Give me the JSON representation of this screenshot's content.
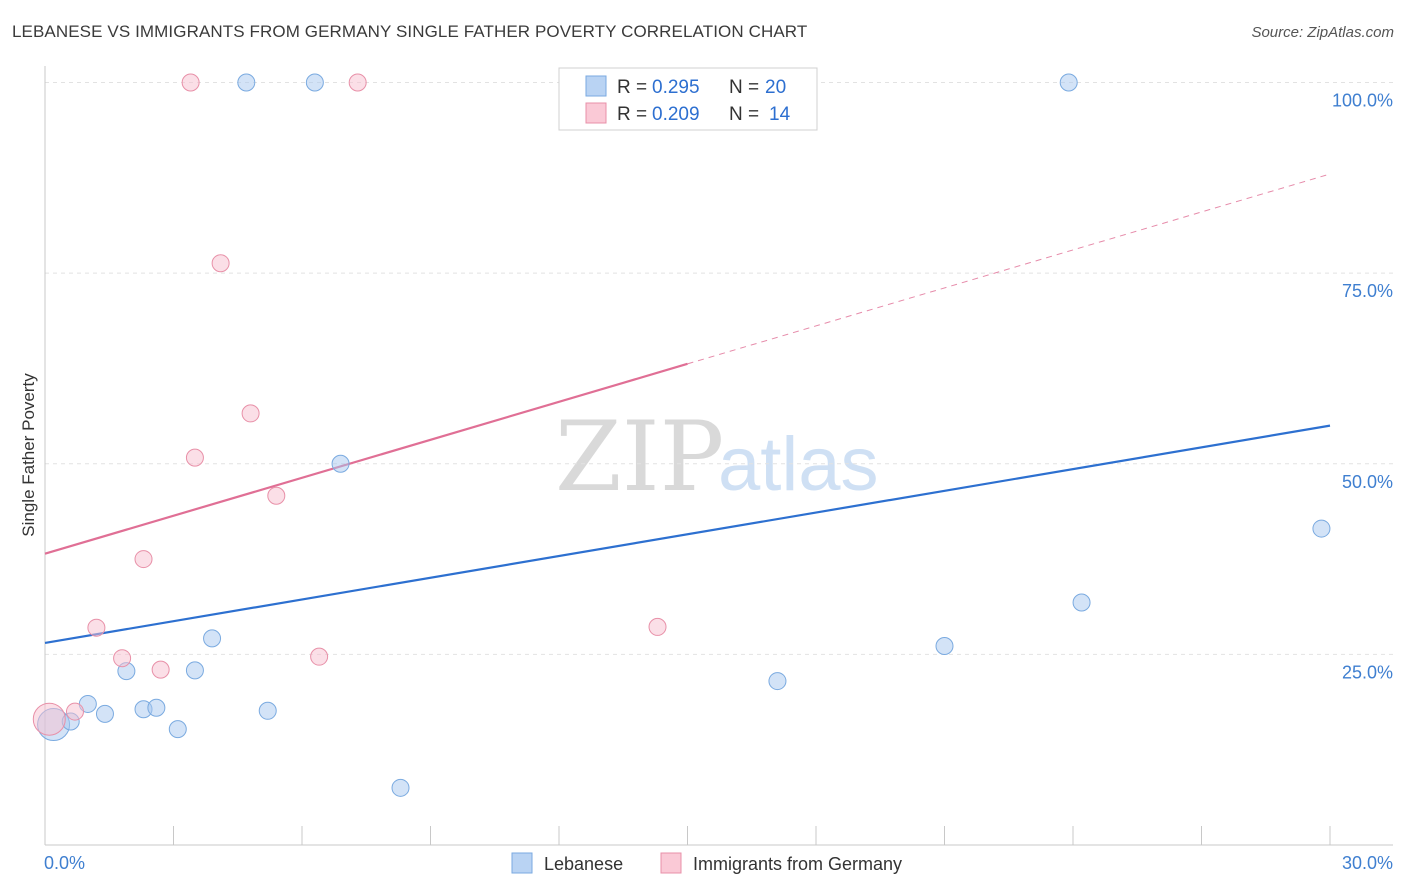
{
  "title": "LEBANESE VS IMMIGRANTS FROM GERMANY SINGLE FATHER POVERTY CORRELATION CHART",
  "source": "Source: ZipAtlas.com",
  "watermark": {
    "part1": "ZIP",
    "part2": "atlas"
  },
  "chart_data": {
    "type": "scatter",
    "ylabel": "Single Father Poverty",
    "xlim": [
      0,
      30
    ],
    "ylim": [
      0,
      104
    ],
    "x_tick_labels": [
      "0.0%",
      "30.0%"
    ],
    "y_ticks": [
      25,
      50,
      75,
      100
    ],
    "y_tick_labels": [
      "25.0%",
      "50.0%",
      "75.0%",
      "100.0%"
    ],
    "legend_top": [
      {
        "r_label": "R = ",
        "r_value": "0.295",
        "n_label": "N = ",
        "n_value": "20"
      },
      {
        "r_label": "R = ",
        "r_value": "0.209",
        "n_label": "N = ",
        "n_value": "14"
      }
    ],
    "series": [
      {
        "name": "Lebanese",
        "color": "#a8c8f0",
        "edge": "#7aaae0",
        "line_color": "#2d70d0",
        "trend": {
          "x0": 0,
          "y0": 26.5,
          "x1": 30,
          "y1": 55.0,
          "solid_until": 30
        },
        "points": [
          {
            "x": 0.2,
            "y": 15.8,
            "big": true
          },
          {
            "x": 0.6,
            "y": 16.2
          },
          {
            "x": 1.0,
            "y": 18.5
          },
          {
            "x": 1.4,
            "y": 17.2
          },
          {
            "x": 1.9,
            "y": 22.8
          },
          {
            "x": 2.3,
            "y": 17.8
          },
          {
            "x": 2.6,
            "y": 18.0
          },
          {
            "x": 3.1,
            "y": 15.2
          },
          {
            "x": 3.5,
            "y": 22.9
          },
          {
            "x": 3.9,
            "y": 27.1
          },
          {
            "x": 4.7,
            "y": 100.0
          },
          {
            "x": 5.2,
            "y": 17.6
          },
          {
            "x": 6.3,
            "y": 100.0
          },
          {
            "x": 6.9,
            "y": 50.0
          },
          {
            "x": 8.3,
            "y": 7.5
          },
          {
            "x": 17.1,
            "y": 21.5
          },
          {
            "x": 21.0,
            "y": 26.1
          },
          {
            "x": 23.9,
            "y": 100.0
          },
          {
            "x": 24.2,
            "y": 31.8
          },
          {
            "x": 29.8,
            "y": 41.5
          }
        ]
      },
      {
        "name": "Immigrants from Germany",
        "color": "#f8c0d0",
        "edge": "#e890a8",
        "line_color": "#e06f95",
        "trend": {
          "x0": 0,
          "y0": 38.2,
          "x1": 30,
          "y1": 88.0,
          "solid_until": 15.0
        },
        "points": [
          {
            "x": 0.1,
            "y": 16.5,
            "big": true
          },
          {
            "x": 0.7,
            "y": 17.5
          },
          {
            "x": 1.2,
            "y": 28.5
          },
          {
            "x": 1.8,
            "y": 24.5
          },
          {
            "x": 2.3,
            "y": 37.5
          },
          {
            "x": 2.7,
            "y": 23.0
          },
          {
            "x": 3.4,
            "y": 100.0
          },
          {
            "x": 3.5,
            "y": 50.8
          },
          {
            "x": 4.1,
            "y": 76.3
          },
          {
            "x": 4.8,
            "y": 56.6
          },
          {
            "x": 5.4,
            "y": 45.8
          },
          {
            "x": 6.4,
            "y": 24.7
          },
          {
            "x": 7.3,
            "y": 100.0
          },
          {
            "x": 14.3,
            "y": 28.6
          }
        ]
      }
    ]
  }
}
